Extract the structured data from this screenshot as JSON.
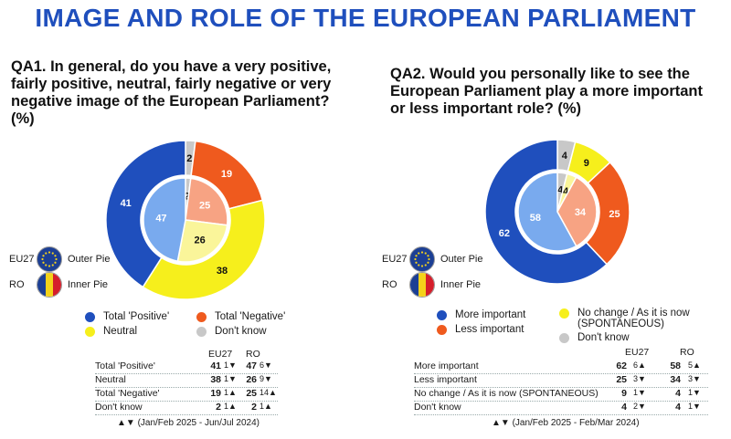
{
  "title": "IMAGE AND ROLE OF THE EUROPEAN PARLIAMENT",
  "qa1": {
    "question": "QA1. In general, do you have a very positive, fairly positive, neutral, fairly negative or very negative image of the European Parliament? (%)"
  },
  "qa2": {
    "question": "QA2. Would you personally like to see the European Parliament play a more important or less important role? (%)"
  },
  "pie_key": {
    "eu_code": "EU27",
    "eu_label": "Outer Pie",
    "ro_code": "RO",
    "ro_label": "Inner Pie"
  },
  "legend1": [
    {
      "label": "Total 'Positive'",
      "color": "#1f4fbd"
    },
    {
      "label": "Total 'Negative'",
      "color": "#ef5a1e"
    },
    {
      "label": "Neutral",
      "color": "#f6ef1c"
    },
    {
      "label": "Don't know",
      "color": "#c8c8c8"
    }
  ],
  "legend2": [
    {
      "label": "More important",
      "color": "#1f4fbd"
    },
    {
      "label": "No change / As it is now (SPONTANEOUS)",
      "color": "#f6ef1c"
    },
    {
      "label": "Less important",
      "color": "#ef5a1e"
    },
    {
      "label": "Don't know",
      "color": "#c8c8c8"
    }
  ],
  "table1": {
    "col_eu": "EU27",
    "col_ro": "RO",
    "rows": [
      {
        "label": "Total 'Positive'",
        "eu": "41",
        "eu_d": "1▼",
        "ro": "47",
        "ro_d": "6▼"
      },
      {
        "label": "Neutral",
        "eu": "38",
        "eu_d": "1▼",
        "ro": "26",
        "ro_d": "9▼"
      },
      {
        "label": "Total 'Negative'",
        "eu": "19",
        "eu_d": "1▲",
        "ro": "25",
        "ro_d": "14▲"
      },
      {
        "label": "Don't know",
        "eu": "2",
        "eu_d": "1▲",
        "ro": "2",
        "ro_d": "1▲"
      }
    ],
    "note": "▲▼ (Jan/Feb 2025 - Jun/Jul 2024)"
  },
  "table2": {
    "col_eu": "EU27",
    "col_ro": "RO",
    "rows": [
      {
        "label": "More important",
        "eu": "62",
        "eu_d": "6▲",
        "ro": "58",
        "ro_d": "5▲"
      },
      {
        "label": "Less important",
        "eu": "25",
        "eu_d": "3▼",
        "ro": "34",
        "ro_d": "3▼"
      },
      {
        "label": "No change / As it is now (SPONTANEOUS)",
        "eu": "9",
        "eu_d": "1▼",
        "ro": "4",
        "ro_d": "1▼"
      },
      {
        "label": "Don't know",
        "eu": "4",
        "eu_d": "2▼",
        "ro": "4",
        "ro_d": "1▼"
      }
    ],
    "note": "▲▼ (Jan/Feb 2025 - Feb/Mar 2024)"
  },
  "chart_data": [
    {
      "type": "pie",
      "title": "QA1. In general, do you have a very positive, fairly positive, neutral, fairly negative or very negative image of the European Parliament? (%)",
      "categories": [
        "Don't know",
        "Total 'Negative'",
        "Neutral",
        "Total 'Positive'"
      ],
      "colors": [
        "#c8c8c8",
        "#ef5a1e",
        "#f6ef1c",
        "#1f4fbd"
      ],
      "inner_colors": [
        "#c8c8c8",
        "#f7a383",
        "#faf59a",
        "#79aaee"
      ],
      "series": [
        {
          "name": "EU27",
          "ring": "outer",
          "values": [
            2,
            19,
            38,
            41
          ]
        },
        {
          "name": "RO",
          "ring": "inner",
          "values": [
            2,
            25,
            26,
            47
          ]
        }
      ]
    },
    {
      "type": "pie",
      "title": "QA2. Would you personally like to see the European Parliament play a more important or less important role? (%)",
      "categories": [
        "Don't know",
        "No change / As it is now (SPONTANEOUS)",
        "Less important",
        "More important"
      ],
      "colors": [
        "#c8c8c8",
        "#f6ef1c",
        "#ef5a1e",
        "#1f4fbd"
      ],
      "inner_colors": [
        "#c8c8c8",
        "#faf59a",
        "#f7a383",
        "#79aaee"
      ],
      "series": [
        {
          "name": "EU27",
          "ring": "outer",
          "values": [
            4,
            9,
            25,
            62
          ]
        },
        {
          "name": "RO",
          "ring": "inner",
          "values": [
            4,
            4,
            34,
            58
          ]
        }
      ]
    }
  ]
}
